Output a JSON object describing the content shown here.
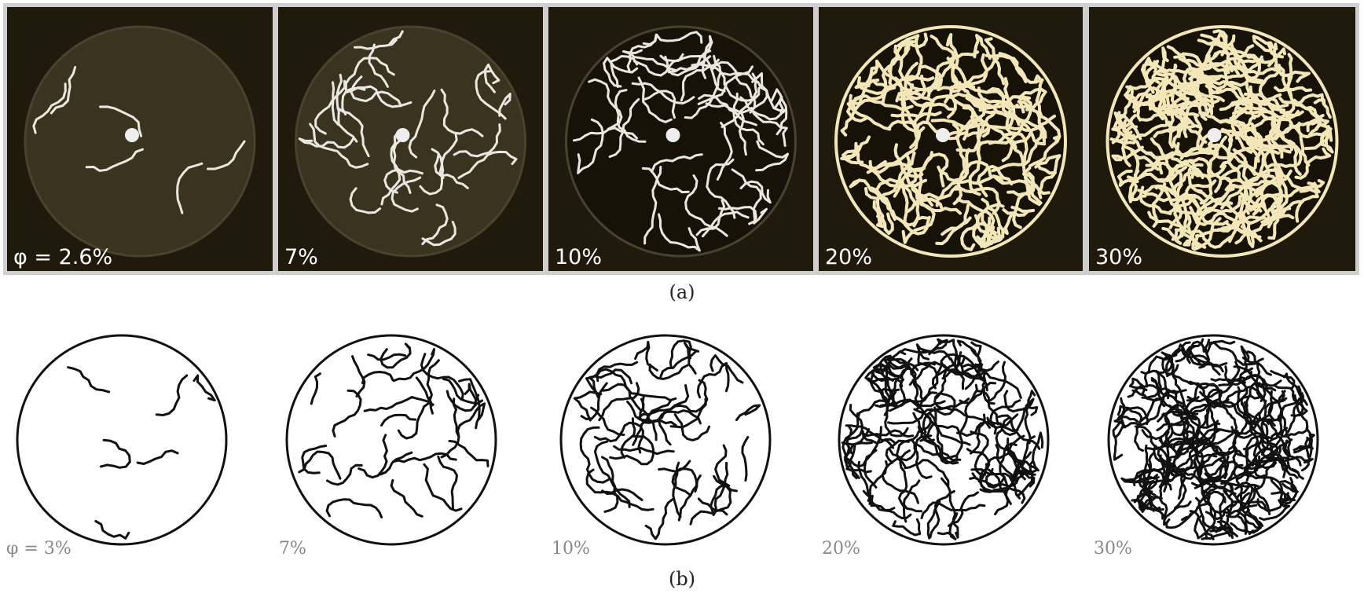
{
  "panel_a": {
    "labels": [
      "φ = 2.6%",
      "7%",
      "10%",
      "20%",
      "30%"
    ],
    "caption": "(a)"
  },
  "panel_b": {
    "labels": [
      "φ = 3%",
      "7%",
      "10%",
      "20%",
      "30%"
    ],
    "caption": "(b)"
  }
}
